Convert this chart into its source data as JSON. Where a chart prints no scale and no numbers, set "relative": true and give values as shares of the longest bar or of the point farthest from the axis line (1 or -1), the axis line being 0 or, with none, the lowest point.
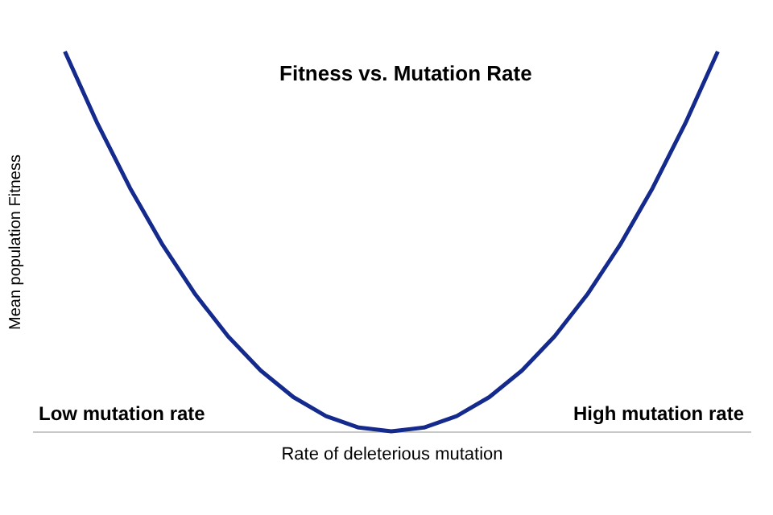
{
  "chart_data": {
    "type": "line",
    "title": "Fitness vs. Mutation Rate",
    "xlabel": "Rate of deleterious mutation",
    "ylabel": "Mean population Fitness",
    "relative": true,
    "categories": [
      null,
      null,
      null,
      null,
      null,
      null,
      null,
      null,
      null,
      null,
      null,
      null,
      null,
      null,
      null,
      null,
      null,
      null,
      null,
      null,
      null
    ],
    "series": [
      {
        "color": "#142a8c",
        "values": [
          1,
          0.81,
          0.64,
          0.49,
          0.36,
          0.25,
          0.16,
          0.09,
          0.04,
          0.01,
          0,
          0.01,
          0.04,
          0.09,
          0.16,
          0.25,
          0.36,
          0.49,
          0.64,
          0.81,
          1
        ]
      }
    ],
    "annotations": [
      "Low mutation rate",
      "High mutation rate"
    ],
    "grid": false,
    "marker": "none",
    "line_style": "solid"
  }
}
